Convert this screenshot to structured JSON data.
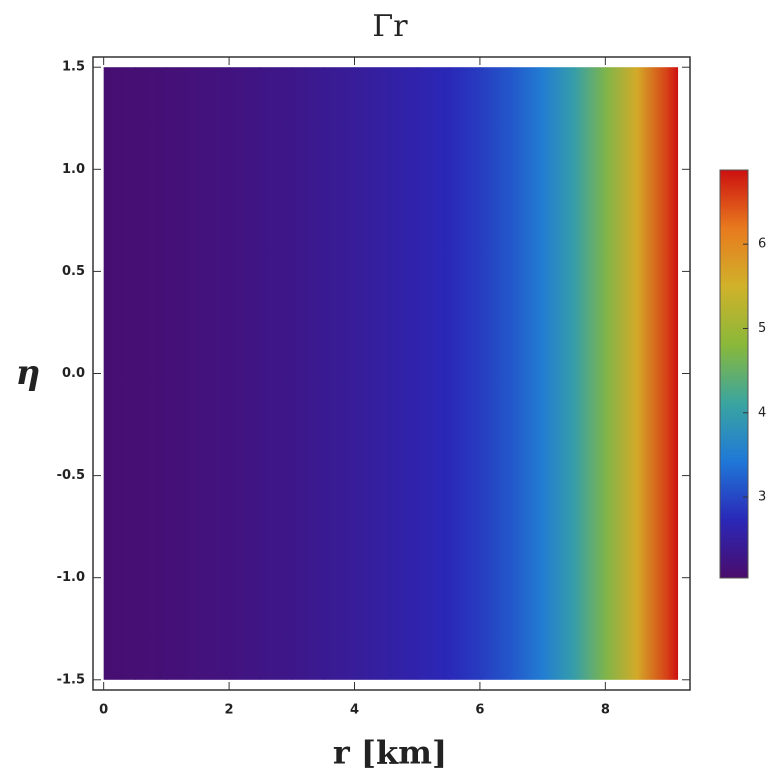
{
  "chart_data": {
    "type": "density",
    "title": "Γr",
    "xlabel": "r [km]",
    "ylabel": "η",
    "x": [
      0,
      0.5,
      1,
      1.5,
      2,
      2.5,
      3,
      3.5,
      4,
      4.5,
      5,
      5.5,
      6,
      6.5,
      7,
      7.5,
      8,
      8.5,
      9,
      9.15
    ],
    "values": [
      2.1,
      2.12,
      2.15,
      2.18,
      2.22,
      2.27,
      2.32,
      2.38,
      2.45,
      2.53,
      2.62,
      2.73,
      2.9,
      3.15,
      3.5,
      4.0,
      4.7,
      5.6,
      6.6,
      6.9
    ],
    "y_extent": [
      -1.5,
      1.5
    ],
    "xlim": [
      -0.17,
      9.35
    ],
    "ylim": [
      -1.55,
      1.55
    ],
    "xticks": [
      0,
      2,
      4,
      6,
      8
    ],
    "yticks": [
      -1.5,
      {
        "value": -1,
        "label": "-1.0"
      },
      -0.5,
      {
        "value": 0,
        "label": "0.0"
      },
      0.5,
      {
        "value": 1,
        "label": "1.0"
      },
      1.5
    ],
    "clim": [
      2.04,
      6.88
    ],
    "cticks": [
      3,
      4,
      5,
      6
    ],
    "colormap": [
      "#4a0c6b",
      "#2a28b8",
      "#1f78d8",
      "#3aa5a0",
      "#8ab83a",
      "#d0b22a",
      "#e87a1e",
      "#cc1010"
    ]
  }
}
